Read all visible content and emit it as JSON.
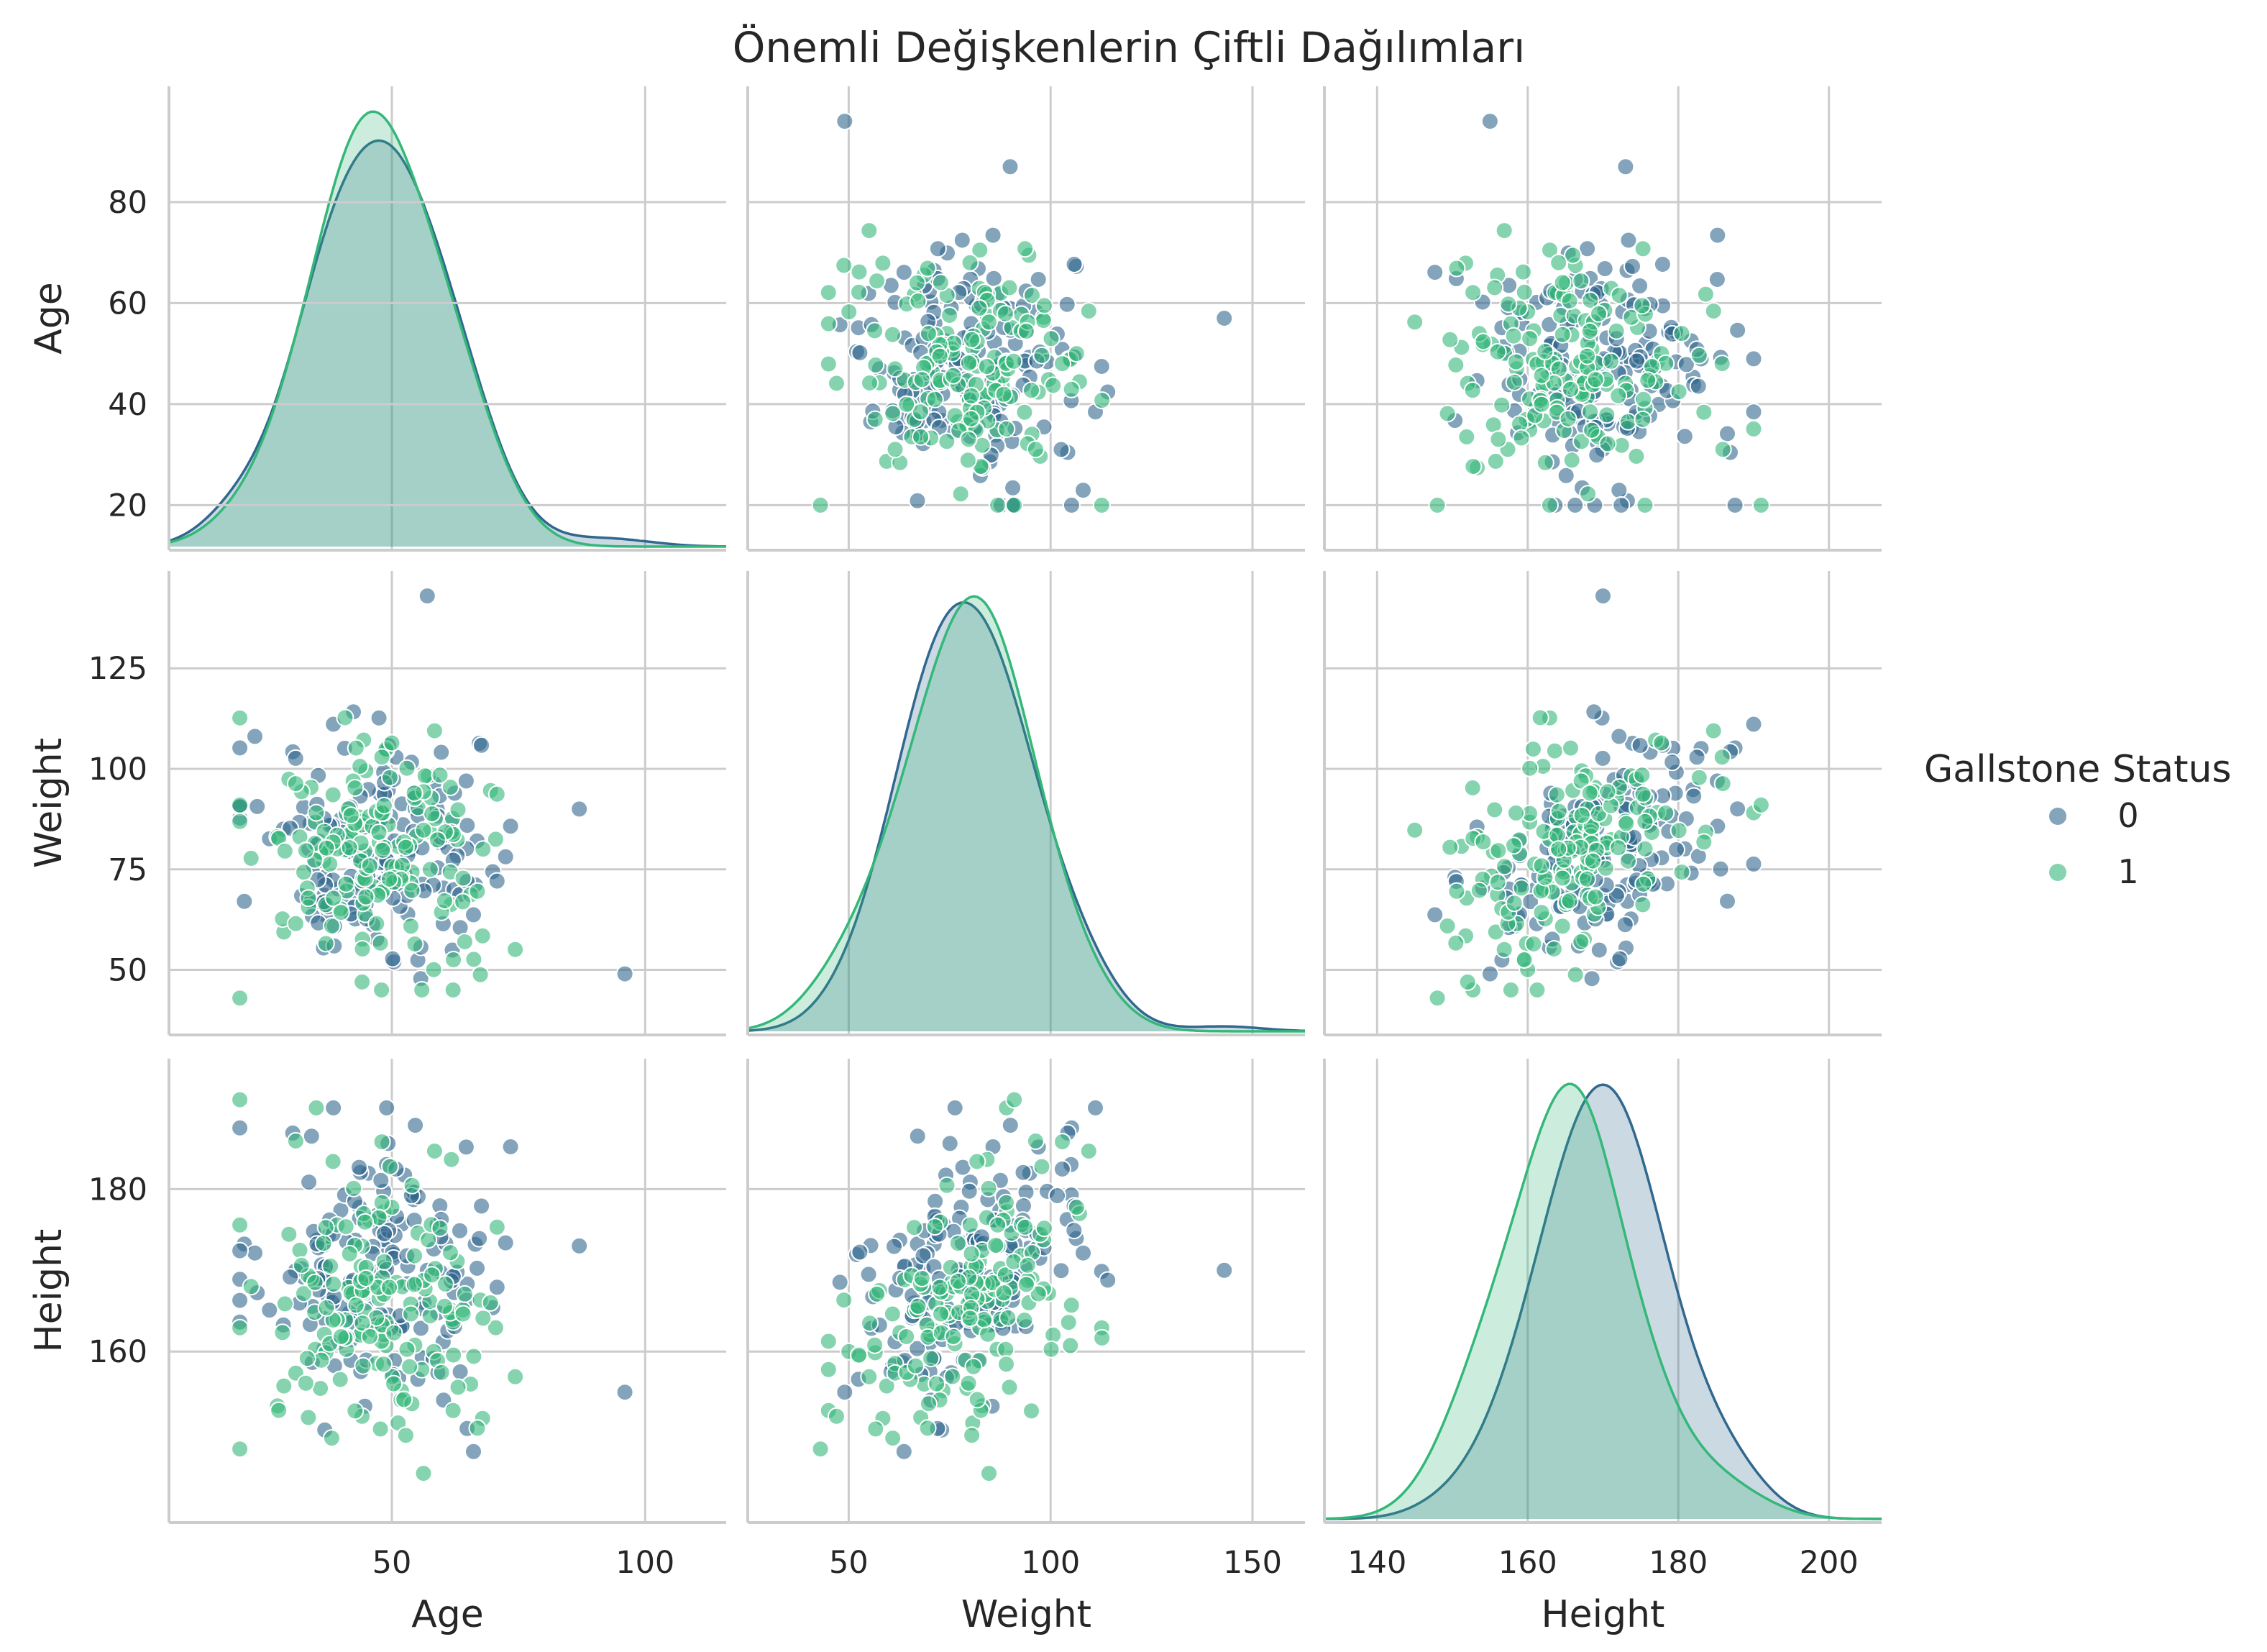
{
  "chart_data": {
    "type": "scatter",
    "subtype": "pairplot",
    "title": "Önemli Değişkenlerin Çiftli Dağılımları",
    "variables": [
      "Age",
      "Weight",
      "Height"
    ],
    "ticks": {
      "Age_x": [
        50,
        100
      ],
      "Age_y": [
        20,
        40,
        60,
        80
      ],
      "Weight_x": [
        50,
        100,
        150
      ],
      "Weight_y": [
        50,
        75,
        100,
        125
      ],
      "Height_x": [
        140,
        160,
        180,
        200
      ],
      "Height_y": [
        160,
        180
      ]
    },
    "ranges": {
      "Age": [
        16,
        98
      ],
      "Weight": [
        40,
        143
      ],
      "Height": [
        142,
        193
      ]
    },
    "xlim": {
      "Age": [
        6,
        116
      ],
      "Weight": [
        25,
        163
      ],
      "Height": [
        133,
        207
      ]
    },
    "grid": true,
    "legend": {
      "title": "Gallstone Status",
      "placement": "right",
      "entries": [
        {
          "label": "0",
          "color": "#31688e"
        },
        {
          "label": "1",
          "color": "#35b779"
        }
      ]
    },
    "series": [
      {
        "name": "0",
        "color": "#31688e",
        "n": 160,
        "age_mean": 49,
        "age_sd": 12,
        "weight_mean": 79,
        "weight_sd": 15,
        "height_mean": 170,
        "height_sd": 9
      },
      {
        "name": "1",
        "color": "#35b779",
        "n": 160,
        "age_mean": 48,
        "age_sd": 12,
        "weight_mean": 81,
        "weight_sd": 15,
        "height_mean": 166,
        "height_sd": 9
      }
    ],
    "notable_points": [
      {
        "series": "0",
        "age": 96,
        "weight": 49,
        "height": 155
      },
      {
        "series": "0",
        "age": 87,
        "weight": 90,
        "height": 173
      },
      {
        "series": "0",
        "age": 57,
        "weight": 143,
        "height": 170
      },
      {
        "series": "1",
        "age": 20,
        "weight": 91,
        "height": 191
      },
      {
        "series": "1",
        "age": 20,
        "weight": 43,
        "height": 148
      }
    ]
  }
}
